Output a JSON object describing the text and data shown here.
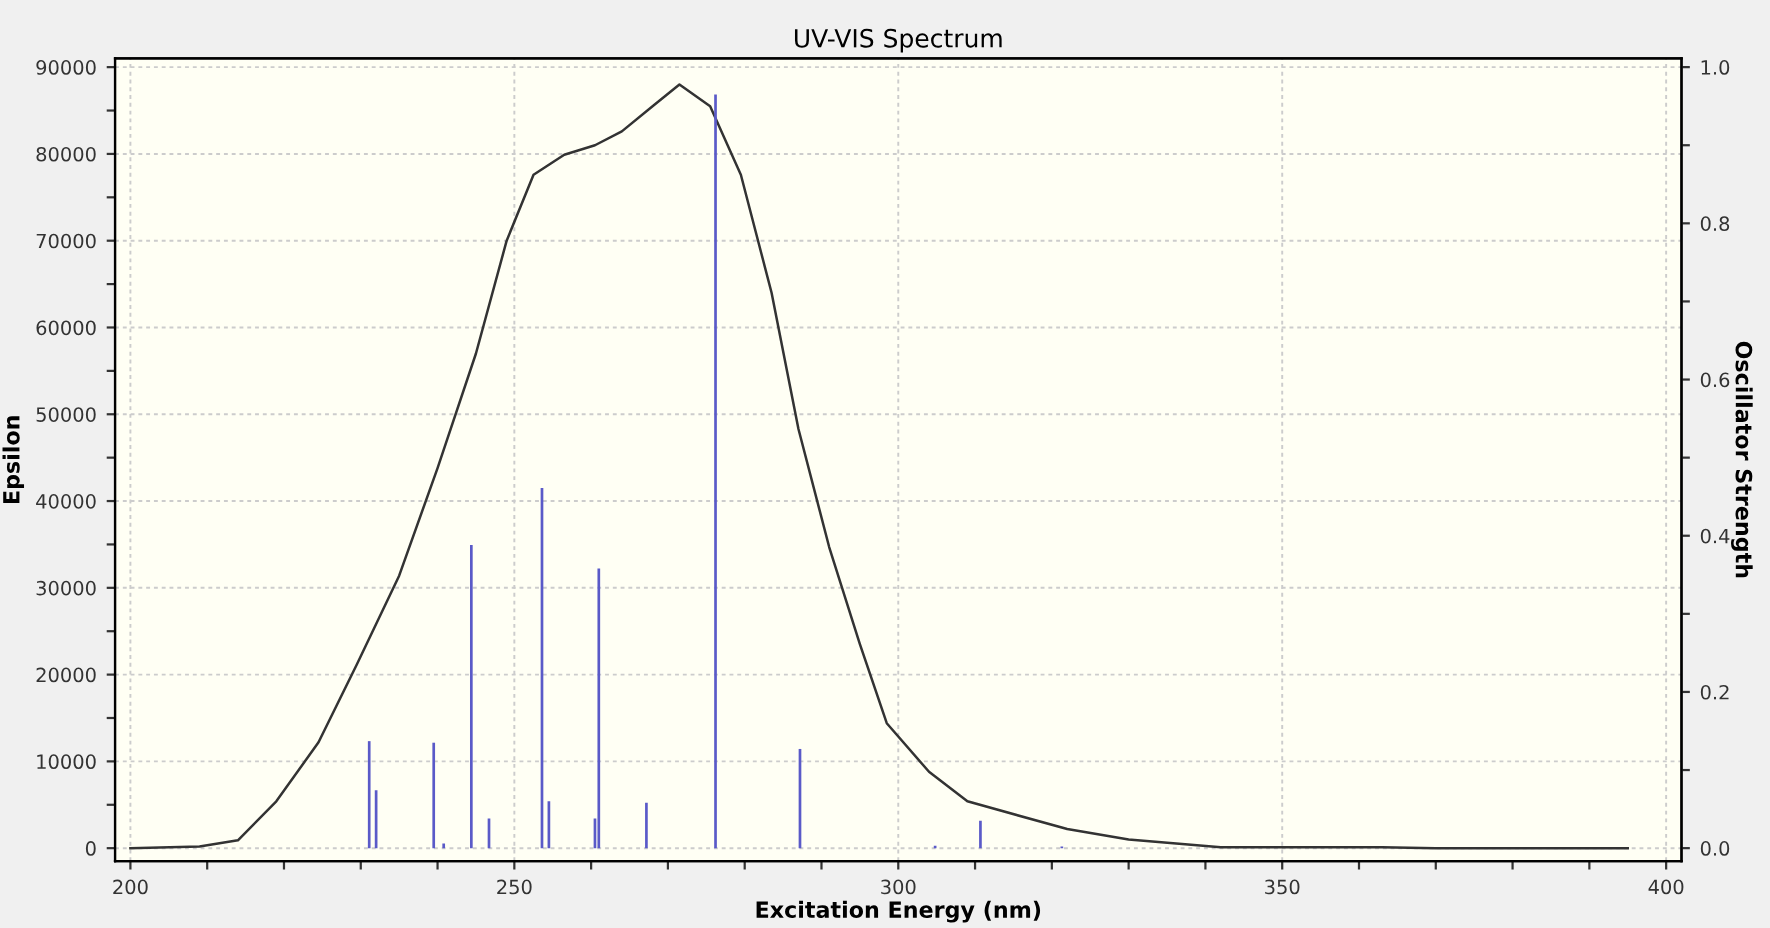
{
  "chart_data": {
    "type": "line",
    "title": "UV-VIS Spectrum",
    "xlabel": "Excitation Energy (nm)",
    "ylabel": "Epsilon",
    "y2label": "Oscillator Strength",
    "xlim": [
      198,
      402
    ],
    "ylim": [
      -1500,
      91000
    ],
    "y2lim": [
      -0.0167,
      1.0111
    ],
    "xticks": [
      200,
      {
        "value": 210,
        "label": null
      },
      {
        "value": 220,
        "label": null
      },
      {
        "value": 230,
        "label": null
      },
      {
        "value": 240,
        "label": null
      },
      250,
      {
        "value": 260,
        "label": null
      },
      {
        "value": 270,
        "label": null
      },
      {
        "value": 280,
        "label": null
      },
      {
        "value": 290,
        "label": null
      },
      300,
      {
        "value": 310,
        "label": null
      },
      {
        "value": 320,
        "label": null
      },
      {
        "value": 330,
        "label": null
      },
      {
        "value": 340,
        "label": null
      },
      350,
      {
        "value": 360,
        "label": null
      },
      {
        "value": 370,
        "label": null
      },
      {
        "value": 380,
        "label": null
      },
      {
        "value": 390,
        "label": null
      },
      400
    ],
    "yticks": [
      0,
      {
        "value": 5000,
        "label": null
      },
      10000,
      {
        "value": 15000,
        "label": null
      },
      20000,
      {
        "value": 25000,
        "label": null
      },
      30000,
      {
        "value": 35000,
        "label": null
      },
      40000,
      {
        "value": 45000,
        "label": null
      },
      50000,
      {
        "value": 55000,
        "label": null
      },
      60000,
      {
        "value": 65000,
        "label": null
      },
      70000,
      {
        "value": 75000,
        "label": null
      },
      80000,
      {
        "value": 85000,
        "label": null
      },
      90000
    ],
    "y2ticks": [
      {
        "value": 0,
        "label": "0.0"
      },
      {
        "value": 0.1,
        "label": null
      },
      0.2,
      {
        "value": 0.3,
        "label": null
      },
      0.4,
      {
        "value": 0.5,
        "label": null
      },
      0.6,
      {
        "value": 0.7,
        "label": null
      },
      0.8,
      {
        "value": 0.9,
        "label": null
      },
      {
        "value": 1,
        "label": "1.0"
      }
    ],
    "grid": true,
    "legend": false,
    "series": [
      {
        "color": "#333333",
        "x": [
          200,
          209,
          214,
          219,
          224.5,
          229.5,
          235,
          240,
          245,
          249,
          252.5,
          256.5,
          260.5,
          264,
          268,
          271.5,
          275.5,
          279.5,
          283.5,
          287,
          291,
          295,
          298.5,
          304,
          309,
          322,
          330,
          342,
          363,
          370,
          395
        ],
        "values": [
          0,
          200,
          900,
          5400,
          12200,
          21200,
          31400,
          43800,
          57000,
          70000,
          77600,
          79900,
          81000,
          82600,
          85500,
          88000,
          85500,
          77600,
          64000,
          48300,
          34700,
          23500,
          14400,
          8800,
          5400,
          2200,
          1000,
          100,
          100,
          0,
          0
        ]
      },
      {
        "type": "bar",
        "axis": "y2",
        "color": "#5a5ac8",
        "x": [
          231.1,
          232,
          239.5,
          240.8,
          244.4,
          246.7,
          253.6,
          254.5,
          260.5,
          261,
          267.2,
          276.2,
          287.2,
          304.8,
          310.7,
          321.3
        ],
        "values": [
          0.137,
          0.074,
          0.135,
          0.006,
          0.388,
          0.038,
          0.461,
          0.06,
          0.038,
          0.358,
          0.058,
          0.965,
          0.127,
          0.003,
          0.035,
          0.002
        ]
      }
    ]
  }
}
